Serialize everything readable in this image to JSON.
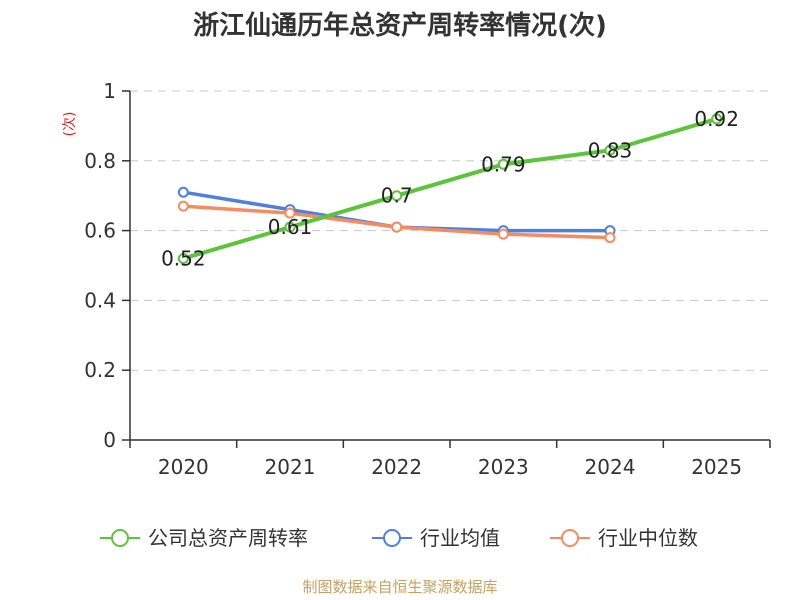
{
  "chart_data": {
    "type": "line",
    "title": "浙江仙通历年总资产周转率情况(次)",
    "ylabel": "(次)",
    "xlabel": "",
    "categories": [
      "2020",
      "2021",
      "2022",
      "2023",
      "2024",
      "2025"
    ],
    "ylim": [
      0,
      1
    ],
    "yticks": [
      0,
      0.2,
      0.4,
      0.6,
      0.8,
      1
    ],
    "ytick_labels": [
      "0",
      "0.2",
      "0.4",
      "0.6",
      "0.8",
      "1"
    ],
    "grid": true,
    "legend_position": "bottom",
    "series": [
      {
        "name": "公司总资产周转率",
        "color": "#5cc43b",
        "values": [
          0.52,
          0.61,
          0.7,
          0.79,
          0.83,
          0.92
        ],
        "labels": [
          "0.52",
          "0.61",
          "0.7",
          "0.79",
          "0.83",
          "0.92"
        ]
      },
      {
        "name": "行业均值",
        "color": "#4f7fdf",
        "values": [
          0.71,
          0.66,
          0.61,
          0.6,
          0.6,
          null
        ]
      },
      {
        "name": "行业中位数",
        "color": "#f68c5e",
        "values": [
          0.67,
          0.65,
          0.61,
          0.59,
          0.58,
          null
        ]
      }
    ]
  },
  "source": "制图数据来自恒生聚源数据库"
}
